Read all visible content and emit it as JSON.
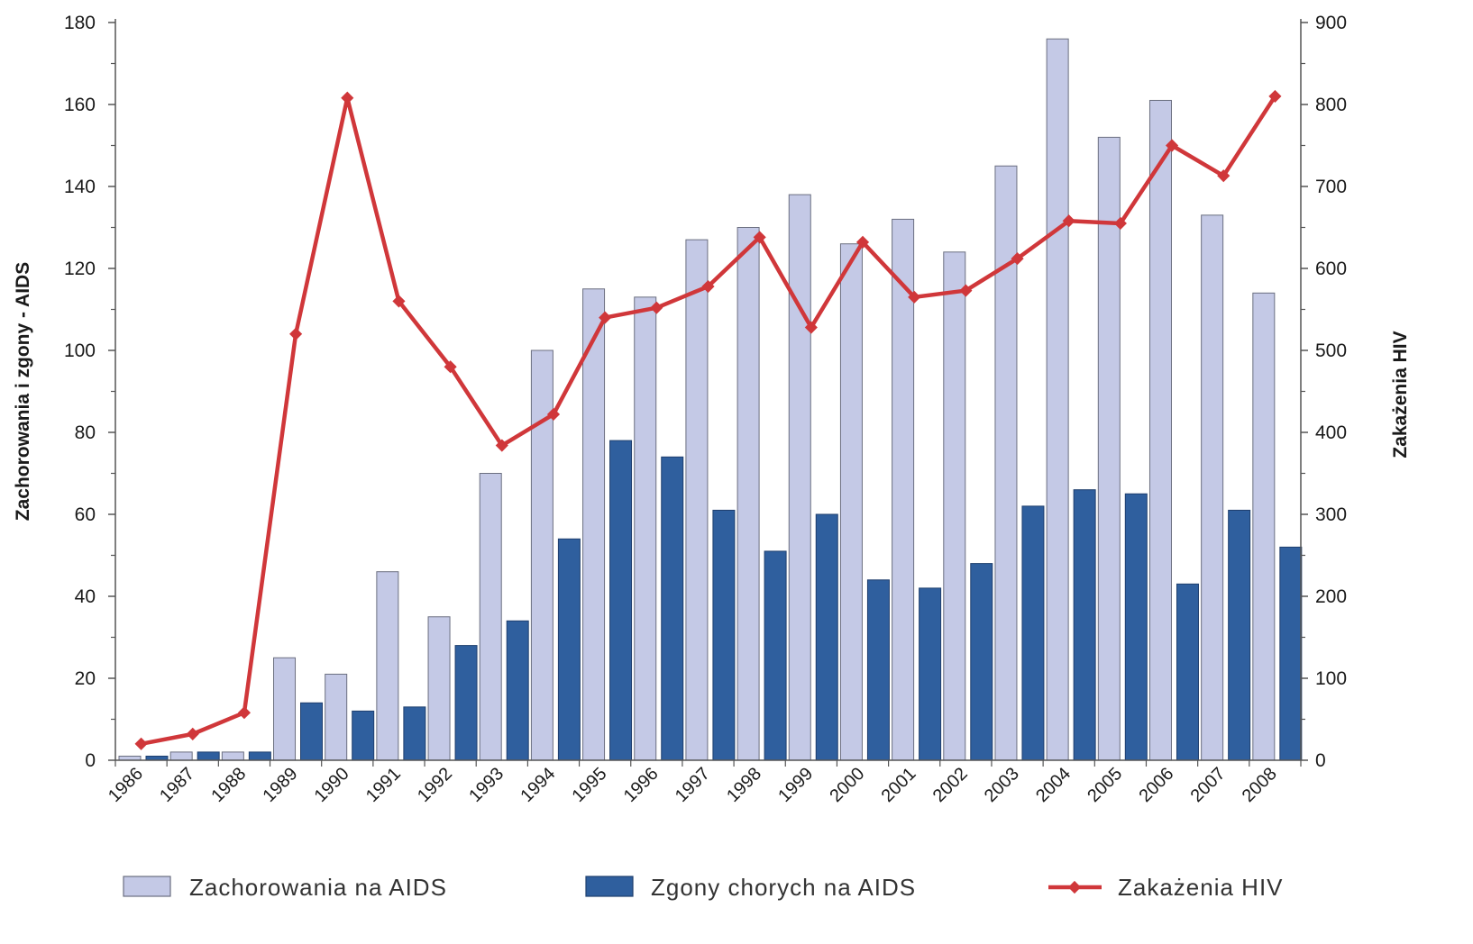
{
  "chart_data": {
    "type": "bar",
    "categories": [
      "1986",
      "1987",
      "1988",
      "1989",
      "1990",
      "1991",
      "1992",
      "1993",
      "1994",
      "1995",
      "1996",
      "1997",
      "1998",
      "1999",
      "2000",
      "2001",
      "2002",
      "2003",
      "2004",
      "2005",
      "2006",
      "2007",
      "2008"
    ],
    "series": [
      {
        "name": "Zachorowania na AIDS",
        "type": "bar",
        "axis": "left",
        "color": "#c4c9e6",
        "values": [
          1,
          2,
          2,
          25,
          21,
          46,
          35,
          70,
          100,
          115,
          113,
          127,
          130,
          138,
          126,
          132,
          124,
          145,
          176,
          152,
          161,
          133,
          114
        ]
      },
      {
        "name": "Zgony chorych na AIDS",
        "type": "bar",
        "axis": "left",
        "color": "#2f5f9e",
        "values": [
          1,
          2,
          2,
          14,
          12,
          13,
          28,
          34,
          54,
          78,
          74,
          61,
          51,
          60,
          44,
          42,
          48,
          62,
          66,
          65,
          43,
          61,
          52
        ]
      },
      {
        "name": "Zakażenia HIV",
        "type": "line",
        "axis": "right",
        "color": "#d0373a",
        "values": [
          20,
          32,
          58,
          520,
          808,
          560,
          480,
          384,
          422,
          540,
          552,
          578,
          638,
          528,
          632,
          565,
          573,
          612,
          658,
          655,
          750,
          713,
          810
        ]
      }
    ],
    "yaxis_left": {
      "label": "Zachorowania i zgony - AIDS",
      "range": [
        0,
        180
      ],
      "ticks": [
        0,
        20,
        40,
        60,
        80,
        100,
        120,
        140,
        160,
        180
      ]
    },
    "yaxis_right": {
      "label": "Zakażenia HIV",
      "range": [
        0,
        900
      ],
      "ticks": [
        0,
        100,
        200,
        300,
        400,
        500,
        600,
        700,
        800,
        900
      ]
    },
    "grid": false,
    "legend_position": "bottom"
  }
}
